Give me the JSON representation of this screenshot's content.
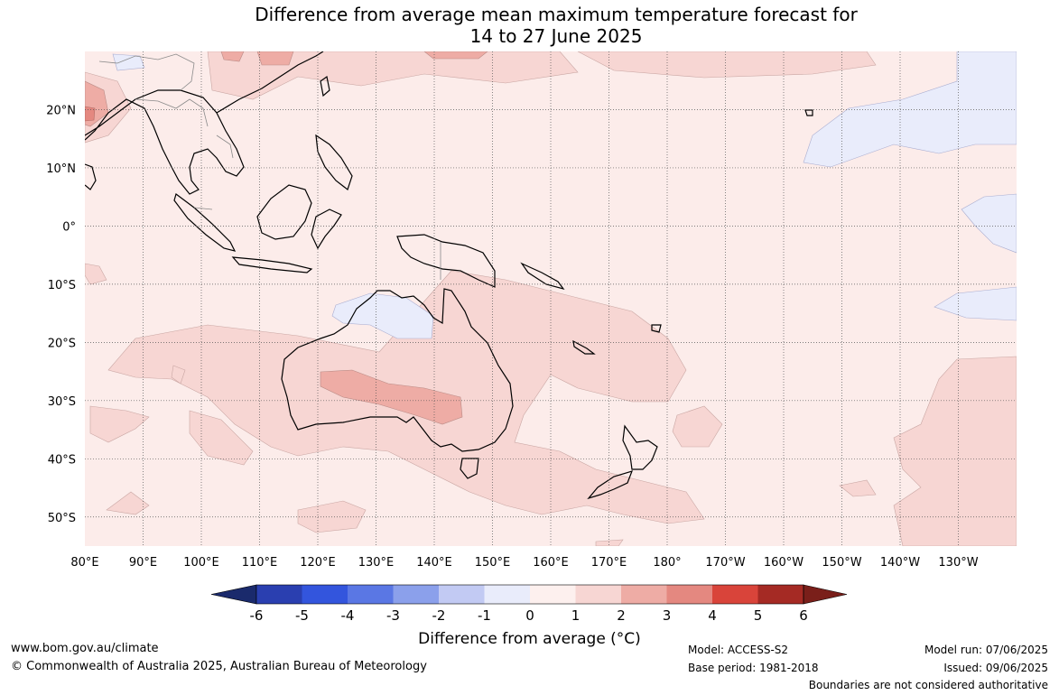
{
  "title": {
    "line1": "Difference from average mean maximum temperature forecast for",
    "line2": "14 to 27 June 2025"
  },
  "map": {
    "lon_range": [
      80,
      240
    ],
    "lat_range": [
      -55,
      30
    ],
    "lon_ticks": [
      "80°E",
      "90°E",
      "100°E",
      "110°E",
      "120°E",
      "130°E",
      "140°E",
      "150°E",
      "160°E",
      "170°E",
      "180°",
      "170°W",
      "160°W",
      "150°W",
      "140°W",
      "130°W"
    ],
    "lat_ticks": [
      "20°N",
      "10°N",
      "0°",
      "10°S",
      "20°S",
      "30°S",
      "40°S",
      "50°S"
    ],
    "grid": true
  },
  "colorbar": {
    "title": "Difference from average (°C)",
    "tick_labels": [
      "-6",
      "-5",
      "-4",
      "-3",
      "-2",
      "-1",
      "0",
      "1",
      "2",
      "3",
      "4",
      "5",
      "6"
    ],
    "colors": [
      "#1a2a6c",
      "#2a3fb0",
      "#3355dd",
      "#5a77e4",
      "#8ba0eb",
      "#c2caf3",
      "#e9ecfb",
      "#fdf0ee",
      "#f7d6d3",
      "#eeaca5",
      "#e48880",
      "#d9443a",
      "#a52a24",
      "#7a1f1a"
    ]
  },
  "footer": {
    "url": "www.bom.gov.au/climate",
    "copyright": "© Commonwealth of Australia 2025, Australian Bureau of Meteorology",
    "model": "Model: ACCESS-S2",
    "base_period": "Base period: 1981-2018",
    "model_run": "Model run: 07/06/2025",
    "issued": "Issued: 09/06/2025",
    "disclaimer": "Boundaries are not considered authoritative"
  }
}
